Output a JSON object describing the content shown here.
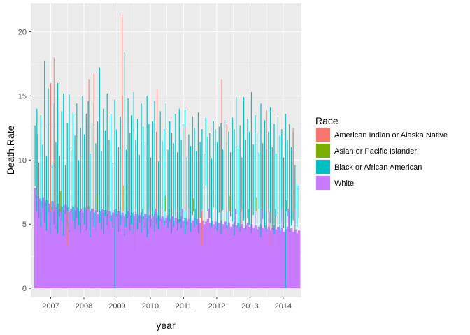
{
  "chart_data": {
    "type": "bar",
    "xlabel": "year",
    "ylabel": "Death.Rate",
    "xlim": [
      2006.4,
      2014.55
    ],
    "ylim": [
      -0.7,
      22.2
    ],
    "x_ticks": [
      2007,
      2008,
      2009,
      2010,
      2011,
      2012,
      2013,
      2014
    ],
    "x_tick_labels": [
      "2007",
      "2008",
      "2009",
      "2010",
      "2011",
      "2012",
      "2013",
      "2014"
    ],
    "y_ticks": [
      0,
      5,
      10,
      15,
      20
    ],
    "y_tick_labels": [
      "0",
      "5",
      "10",
      "15",
      "20"
    ],
    "grid": true,
    "legend": {
      "title": "Race",
      "position": "right",
      "entries": [
        {
          "label": "American Indian or Alaska Native",
          "color": "#F8766D"
        },
        {
          "label": "Asian or Pacific Islander",
          "color": "#7CAE00"
        },
        {
          "label": "Black or African American",
          "color": "#00BFC4"
        },
        {
          "label": "White",
          "color": "#C77CFF"
        }
      ]
    },
    "series": [
      {
        "name": "American Indian or Alaska Native",
        "color": "#F8766D",
        "peaks": [
          [
            2006.6,
            12.0
          ],
          [
            2007.0,
            16.0
          ],
          [
            2007.1,
            18.0
          ],
          [
            2007.5,
            3.3
          ],
          [
            2008.15,
            16.3
          ],
          [
            2008.3,
            16.7
          ],
          [
            2009.15,
            21.3
          ],
          [
            2009.55,
            2.8
          ],
          [
            2010.2,
            15.5
          ],
          [
            2010.35,
            13.4
          ],
          [
            2011.05,
            12.6
          ],
          [
            2011.55,
            3.4
          ],
          [
            2012.15,
            16.3
          ],
          [
            2012.3,
            12.8
          ],
          [
            2013.5,
            13.9
          ],
          [
            2013.6,
            3.4
          ],
          [
            2014.3,
            12.5
          ]
        ]
      },
      {
        "name": "Asian or Pacific Islander",
        "color": "#7CAE00",
        "peaks": [
          [
            2007.3,
            7.6
          ],
          [
            2008.4,
            7.3
          ],
          [
            2009.2,
            8.0
          ],
          [
            2010.45,
            7.2
          ],
          [
            2011.3,
            7.0
          ],
          [
            2012.4,
            7.2
          ],
          [
            2013.2,
            7.1
          ],
          [
            2014.1,
            6.9
          ]
        ]
      },
      {
        "name": "Black or African American",
        "color": "#00BFC4",
        "values": [
          12.7,
          14.0,
          9.8,
          13.5,
          11.2,
          17.7,
          10.3,
          15.6,
          12.6,
          9.7,
          14.4,
          11.4,
          16.0,
          10.3,
          13.8,
          15.2,
          9.6,
          12.9,
          15.1,
          10.8,
          13.7,
          11.9,
          14.4,
          10.0,
          12.5,
          15.0,
          12.0,
          13.6,
          14.6,
          10.5,
          12.8,
          14.5,
          11.3,
          13.0,
          17.2,
          10.7,
          14.0,
          12.3,
          15.2,
          11.6,
          13.6,
          9.8,
          14.7,
          12.4,
          11.0,
          13.4,
          15.0,
          18.4,
          10.8,
          14.8,
          12.1,
          13.5,
          15.3,
          11.6,
          13.2,
          10.4,
          14.4,
          12.6,
          11.4,
          15.0,
          12.8,
          10.2,
          13.0,
          14.6,
          12.2,
          9.9,
          13.8,
          11.5,
          12.4,
          14.4,
          10.8,
          13.0,
          12.1,
          11.3,
          13.6,
          10.6,
          14.0,
          11.6,
          12.8,
          13.9,
          10.2,
          12.0,
          11.1,
          13.4,
          12.5,
          10.7,
          13.7,
          11.4,
          12.4,
          10.5,
          13.3,
          11.8,
          12.1,
          10.1,
          13.0,
          12.4,
          11.4,
          12.6,
          12.9,
          10.8,
          13.1,
          11.4,
          12.2,
          10.6,
          13.3,
          12.4,
          14.9,
          11.1,
          12.7,
          10.2,
          14.9,
          11.6,
          13.2,
          12.2,
          15.3,
          11.2,
          13.5,
          12.1,
          10.6,
          14.4,
          11.3,
          13.1,
          10.8,
          12.2,
          14.1,
          11.0,
          12.8,
          10.5,
          13.4,
          11.9,
          12.4,
          10.2,
          13.6,
          11.6,
          12.8,
          11.0,
          12.2,
          9.6,
          8.1,
          8.0
        ],
        "min_values": [
          8.0,
          6.0,
          5.5,
          4.8,
          6.3,
          5.1,
          4.5,
          5.9,
          4.2,
          6.1,
          5.0,
          4.7,
          4.3,
          5.6,
          5.2,
          4.1,
          5.8,
          4.8,
          4.4,
          6.0,
          5.3,
          4.6,
          5.5,
          4.9,
          4.3,
          5.7,
          5.0,
          4.5,
          6.2,
          4.0,
          5.4,
          4.8,
          4.4,
          5.9,
          5.1,
          4.6,
          4.2,
          5.6,
          4.9,
          4.3,
          5.2,
          4.7,
          0.0,
          5.6,
          4.4,
          4.9,
          5.3,
          4.1,
          4.8,
          5.5,
          4.5,
          5.0,
          4.2,
          5.7,
          4.6,
          5.1,
          4.3,
          5.4,
          4.7,
          4.0,
          5.2,
          4.8,
          5.6,
          4.4,
          5.0,
          4.6,
          5.3,
          4.1,
          4.9,
          5.5,
          4.7,
          5.2,
          4.3,
          4.8,
          5.6,
          4.5,
          5.1,
          4.7,
          5.4,
          4.2,
          4.9,
          5.2,
          4.4,
          5.7,
          4.8,
          5.0,
          4.3,
          5.5,
          4.6,
          5.1
        ]
      },
      {
        "name": "White",
        "color": "#C77CFF",
        "values": [
          7.8,
          7.2,
          7.0,
          6.8,
          7.1,
          6.7,
          6.9,
          6.6,
          6.4,
          6.8,
          6.5,
          6.3,
          6.6,
          6.2,
          6.4,
          6.1,
          6.5,
          6.3,
          6.0,
          6.2,
          6.4,
          6.1,
          6.3,
          6.0,
          6.2,
          5.9,
          6.3,
          6.1,
          6.4,
          6.0,
          6.2,
          5.9,
          6.1,
          5.8,
          6.0,
          6.2,
          5.9,
          6.1,
          5.8,
          6.0,
          5.7,
          5.9,
          6.1,
          5.8,
          6.0,
          5.7,
          5.9,
          5.6,
          5.8,
          6.0,
          5.7,
          5.9,
          5.6,
          5.8,
          5.5,
          5.7,
          5.9,
          5.6,
          5.8,
          5.5,
          5.7,
          5.4,
          5.6,
          5.8,
          5.5,
          5.7,
          5.4,
          5.6,
          5.3,
          5.5,
          5.7,
          5.4,
          5.6,
          5.3,
          5.5,
          5.2,
          5.4,
          5.6,
          5.3,
          5.5,
          5.2,
          5.4,
          5.1,
          5.3,
          5.5,
          5.2,
          5.4,
          5.1,
          5.3,
          5.0,
          5.2,
          5.4,
          5.1,
          5.3,
          5.0,
          5.2,
          4.9,
          5.1,
          5.3,
          5.0,
          5.2,
          4.9,
          5.1,
          4.8,
          5.0,
          5.2,
          4.9,
          5.1,
          4.8,
          5.0,
          4.7,
          4.9,
          5.1,
          4.8,
          5.0,
          4.7,
          4.9,
          4.6,
          4.8,
          5.0,
          4.7,
          4.9,
          4.6,
          4.8,
          4.5,
          4.7,
          4.9,
          4.6,
          4.8,
          4.5,
          4.7,
          4.4,
          4.6,
          4.8,
          4.5,
          4.7,
          4.4,
          4.6,
          4.3,
          4.5
        ],
        "min_values": [
          4.9,
          5.2,
          4.6,
          4.8,
          5.0,
          4.5,
          4.7,
          4.3,
          4.9,
          4.4,
          4.6,
          4.2,
          4.8,
          4.3,
          4.5,
          4.1,
          4.7,
          4.2,
          4.4,
          4.0,
          4.6,
          4.1,
          4.3,
          3.9,
          4.5,
          4.0,
          4.2,
          3.8,
          4.4,
          3.9,
          4.1,
          3.7,
          4.3,
          3.8,
          4.0,
          3.6,
          4.2,
          3.7,
          3.9,
          3.5
        ]
      }
    ]
  }
}
